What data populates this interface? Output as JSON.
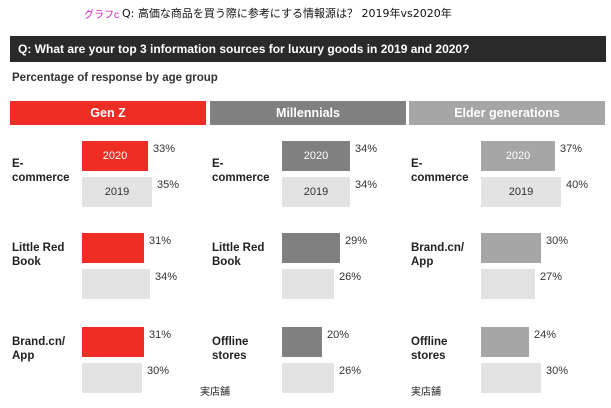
{
  "figure_label": "グラフc",
  "top_title": "Q: 高価な商品を買う際に参考にする情報源は？ 2019年vs2020年",
  "question": "Q: What are your top 3 information sources for luxury goods in 2019 and 2020?",
  "subtitle": "Percentage of response by age group",
  "colors": {
    "genz_2020": "#ee2e24",
    "millennials_2020": "#808080",
    "elder_2020": "#a6a6a6",
    "prev_2019": "#e3e3e3",
    "genz_header": "#ee2e24",
    "millennials_header": "#808080",
    "elder_header": "#a6a6a6"
  },
  "chart_data": [
    {
      "type": "bar",
      "group": "Gen Z",
      "categories": [
        "E-commerce",
        "Little Red Book",
        "Brand.cn/ App"
      ],
      "series": [
        {
          "name": "2020",
          "values": [
            33,
            31,
            31
          ]
        },
        {
          "name": "2019",
          "values": [
            35,
            34,
            30
          ]
        }
      ],
      "notes": [
        "",
        "",
        ""
      ]
    },
    {
      "type": "bar",
      "group": "Millennials",
      "categories": [
        "E-commerce",
        "Little Red Book",
        "Offline stores"
      ],
      "series": [
        {
          "name": "2020",
          "values": [
            34,
            29,
            20
          ]
        },
        {
          "name": "2019",
          "values": [
            34,
            26,
            26
          ]
        }
      ],
      "notes": [
        "",
        "",
        "実店舗"
      ]
    },
    {
      "type": "bar",
      "group": "Elder generations",
      "categories": [
        "E-commerce",
        "Brand.cn/ App",
        "Offline stores"
      ],
      "series": [
        {
          "name": "2020",
          "values": [
            37,
            30,
            24
          ]
        },
        {
          "name": "2019",
          "values": [
            40,
            27,
            30
          ]
        }
      ],
      "notes": [
        "",
        "",
        "実店舗"
      ]
    }
  ]
}
